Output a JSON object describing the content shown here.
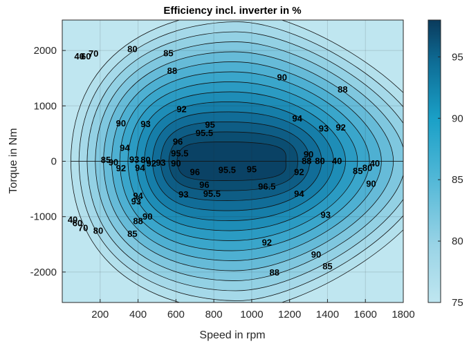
{
  "chart_data": {
    "type": "heatmap",
    "subtype": "filled-contour",
    "title": "Efficiency incl. inverter in %",
    "xlabel": "Speed in rpm",
    "ylabel": "Torque in Nm",
    "xlim": [
      0,
      1800
    ],
    "ylim": [
      -2550,
      2550
    ],
    "xticks": [
      200,
      400,
      600,
      800,
      1000,
      1200,
      1400,
      1600,
      1800
    ],
    "yticks": [
      -2000,
      -1000,
      0,
      1000,
      2000
    ],
    "xtick_labels": [
      "200",
      "400",
      "600",
      "800",
      "1000",
      "1200",
      "1400",
      "1600",
      "1800"
    ],
    "ytick_labels": [
      "-2000",
      "-1000",
      "0",
      "1000",
      "2000"
    ],
    "grid": true,
    "colorbar": {
      "position": "right",
      "range": [
        75,
        98
      ],
      "ticks": [
        75,
        80,
        85,
        90,
        95
      ],
      "tick_labels": [
        "75",
        "80",
        "85",
        "90",
        "95"
      ],
      "color_low": "#bfe6f0",
      "color_mid": "#1aa0c7",
      "color_high": "#0a3a5c"
    },
    "contour_levels": [
      40,
      60,
      70,
      80,
      85,
      88,
      90,
      92,
      93,
      94,
      95,
      95.5,
      96,
      96.5
    ],
    "contour_labels": [
      {
        "text": "40",
        "x": 90,
        "y": 1900
      },
      {
        "text": "60",
        "x": 125,
        "y": 1900
      },
      {
        "text": "70",
        "x": 165,
        "y": 1950
      },
      {
        "text": "80",
        "x": 370,
        "y": 2030
      },
      {
        "text": "85",
        "x": 560,
        "y": 1960
      },
      {
        "text": "88",
        "x": 580,
        "y": 1640
      },
      {
        "text": "90",
        "x": 1160,
        "y": 1520
      },
      {
        "text": "88",
        "x": 1480,
        "y": 1300
      },
      {
        "text": "92",
        "x": 630,
        "y": 950
      },
      {
        "text": "90",
        "x": 310,
        "y": 690
      },
      {
        "text": "93",
        "x": 440,
        "y": 680
      },
      {
        "text": "95",
        "x": 780,
        "y": 670
      },
      {
        "text": "95.5",
        "x": 750,
        "y": 520
      },
      {
        "text": "96",
        "x": 610,
        "y": 360
      },
      {
        "text": "94",
        "x": 1240,
        "y": 780
      },
      {
        "text": "93",
        "x": 1380,
        "y": 600
      },
      {
        "text": "92",
        "x": 1470,
        "y": 620
      },
      {
        "text": "94",
        "x": 330,
        "y": 250
      },
      {
        "text": "95.5",
        "x": 620,
        "y": 150
      },
      {
        "text": "85",
        "x": 230,
        "y": 30
      },
      {
        "text": "90",
        "x": 270,
        "y": -10
      },
      {
        "text": "92",
        "x": 310,
        "y": -120
      },
      {
        "text": "93",
        "x": 380,
        "y": 40
      },
      {
        "text": "94",
        "x": 410,
        "y": -110
      },
      {
        "text": "80",
        "x": 440,
        "y": 30
      },
      {
        "text": "92",
        "x": 470,
        "y": -30
      },
      {
        "text": "93",
        "x": 520,
        "y": -20
      },
      {
        "text": "90",
        "x": 600,
        "y": -30
      },
      {
        "text": "96",
        "x": 700,
        "y": -190
      },
      {
        "text": "95.5",
        "x": 870,
        "y": -150
      },
      {
        "text": "95",
        "x": 1000,
        "y": -140
      },
      {
        "text": "88",
        "x": 1290,
        "y": 10
      },
      {
        "text": "90",
        "x": 1300,
        "y": 130
      },
      {
        "text": "80",
        "x": 1360,
        "y": 10
      },
      {
        "text": "40",
        "x": 1450,
        "y": 10
      },
      {
        "text": "92",
        "x": 1250,
        "y": -190
      },
      {
        "text": "85",
        "x": 1560,
        "y": -170
      },
      {
        "text": "80",
        "x": 1610,
        "y": -110
      },
      {
        "text": "40",
        "x": 1650,
        "y": -30
      },
      {
        "text": "90",
        "x": 1630,
        "y": -400
      },
      {
        "text": "96",
        "x": 750,
        "y": -420
      },
      {
        "text": "96.5",
        "x": 1080,
        "y": -450
      },
      {
        "text": "95.5",
        "x": 790,
        "y": -580
      },
      {
        "text": "93",
        "x": 640,
        "y": -590
      },
      {
        "text": "94",
        "x": 1250,
        "y": -580
      },
      {
        "text": "94",
        "x": 400,
        "y": -620
      },
      {
        "text": "93",
        "x": 390,
        "y": -720
      },
      {
        "text": "90",
        "x": 450,
        "y": -990
      },
      {
        "text": "88",
        "x": 400,
        "y": -1070
      },
      {
        "text": "85",
        "x": 370,
        "y": -1300
      },
      {
        "text": "80",
        "x": 190,
        "y": -1250
      },
      {
        "text": "70",
        "x": 110,
        "y": -1200
      },
      {
        "text": "60",
        "x": 80,
        "y": -1110
      },
      {
        "text": "40",
        "x": 55,
        "y": -1050
      },
      {
        "text": "93",
        "x": 1390,
        "y": -960
      },
      {
        "text": "92",
        "x": 1080,
        "y": -1460
      },
      {
        "text": "90",
        "x": 1340,
        "y": -1680
      },
      {
        "text": "88",
        "x": 1120,
        "y": -2000
      },
      {
        "text": "85",
        "x": 1400,
        "y": -1890
      }
    ]
  }
}
